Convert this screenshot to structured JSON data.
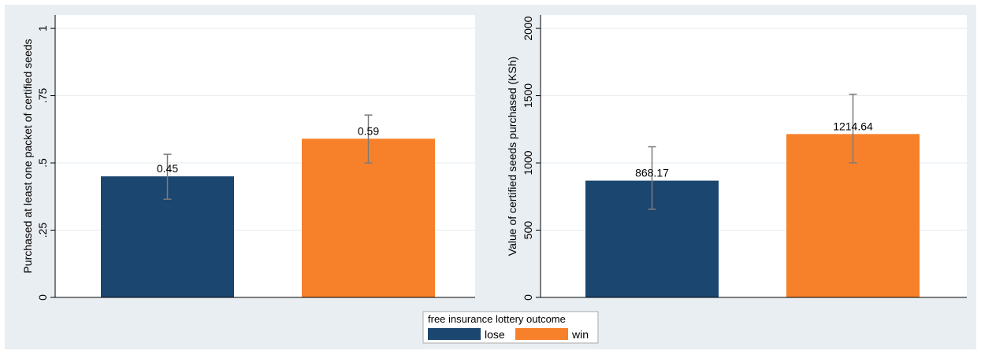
{
  "chart_data": [
    {
      "type": "bar",
      "categories": [
        "lose",
        "win"
      ],
      "values": [
        0.45,
        0.59
      ],
      "data_labels": [
        "0.45",
        "0.59"
      ],
      "error_bars": [
        [
          0.365,
          0.532
        ],
        [
          0.5,
          0.678
        ]
      ],
      "ylabel": "Purchased at least one packet of certified seeds",
      "ylim": [
        0,
        1.05
      ],
      "yticks": [
        0,
        0.25,
        0.5,
        0.75,
        1
      ],
      "ytick_labels": [
        "0",
        ".25",
        ".5",
        ".75",
        "1"
      ],
      "grid": true
    },
    {
      "type": "bar",
      "categories": [
        "lose",
        "win"
      ],
      "values": [
        868.17,
        1214.64
      ],
      "data_labels": [
        "868.17",
        "1214.64"
      ],
      "error_bars": [
        [
          655,
          1120
        ],
        [
          1000,
          1510
        ]
      ],
      "ylabel": "Value of certified seeds purchased (KSh)",
      "ylim": [
        0,
        2100
      ],
      "yticks": [
        0,
        500,
        1000,
        1500,
        2000
      ],
      "ytick_labels": [
        "0",
        "500",
        "1000",
        "1500",
        "2000"
      ],
      "grid": true
    }
  ],
  "legend": {
    "title": "free insurance lottery outcome",
    "placement": "bottom-center",
    "items": [
      {
        "label": "lose",
        "color": "#1b4670"
      },
      {
        "label": "win",
        "color": "#f7812b"
      }
    ]
  },
  "colors": {
    "outer_background": "#e9eef2",
    "plot_background": "#ffffff",
    "grid": "#e6ecf0",
    "error_bar": "#7a7a7a",
    "axis": "#000000"
  }
}
